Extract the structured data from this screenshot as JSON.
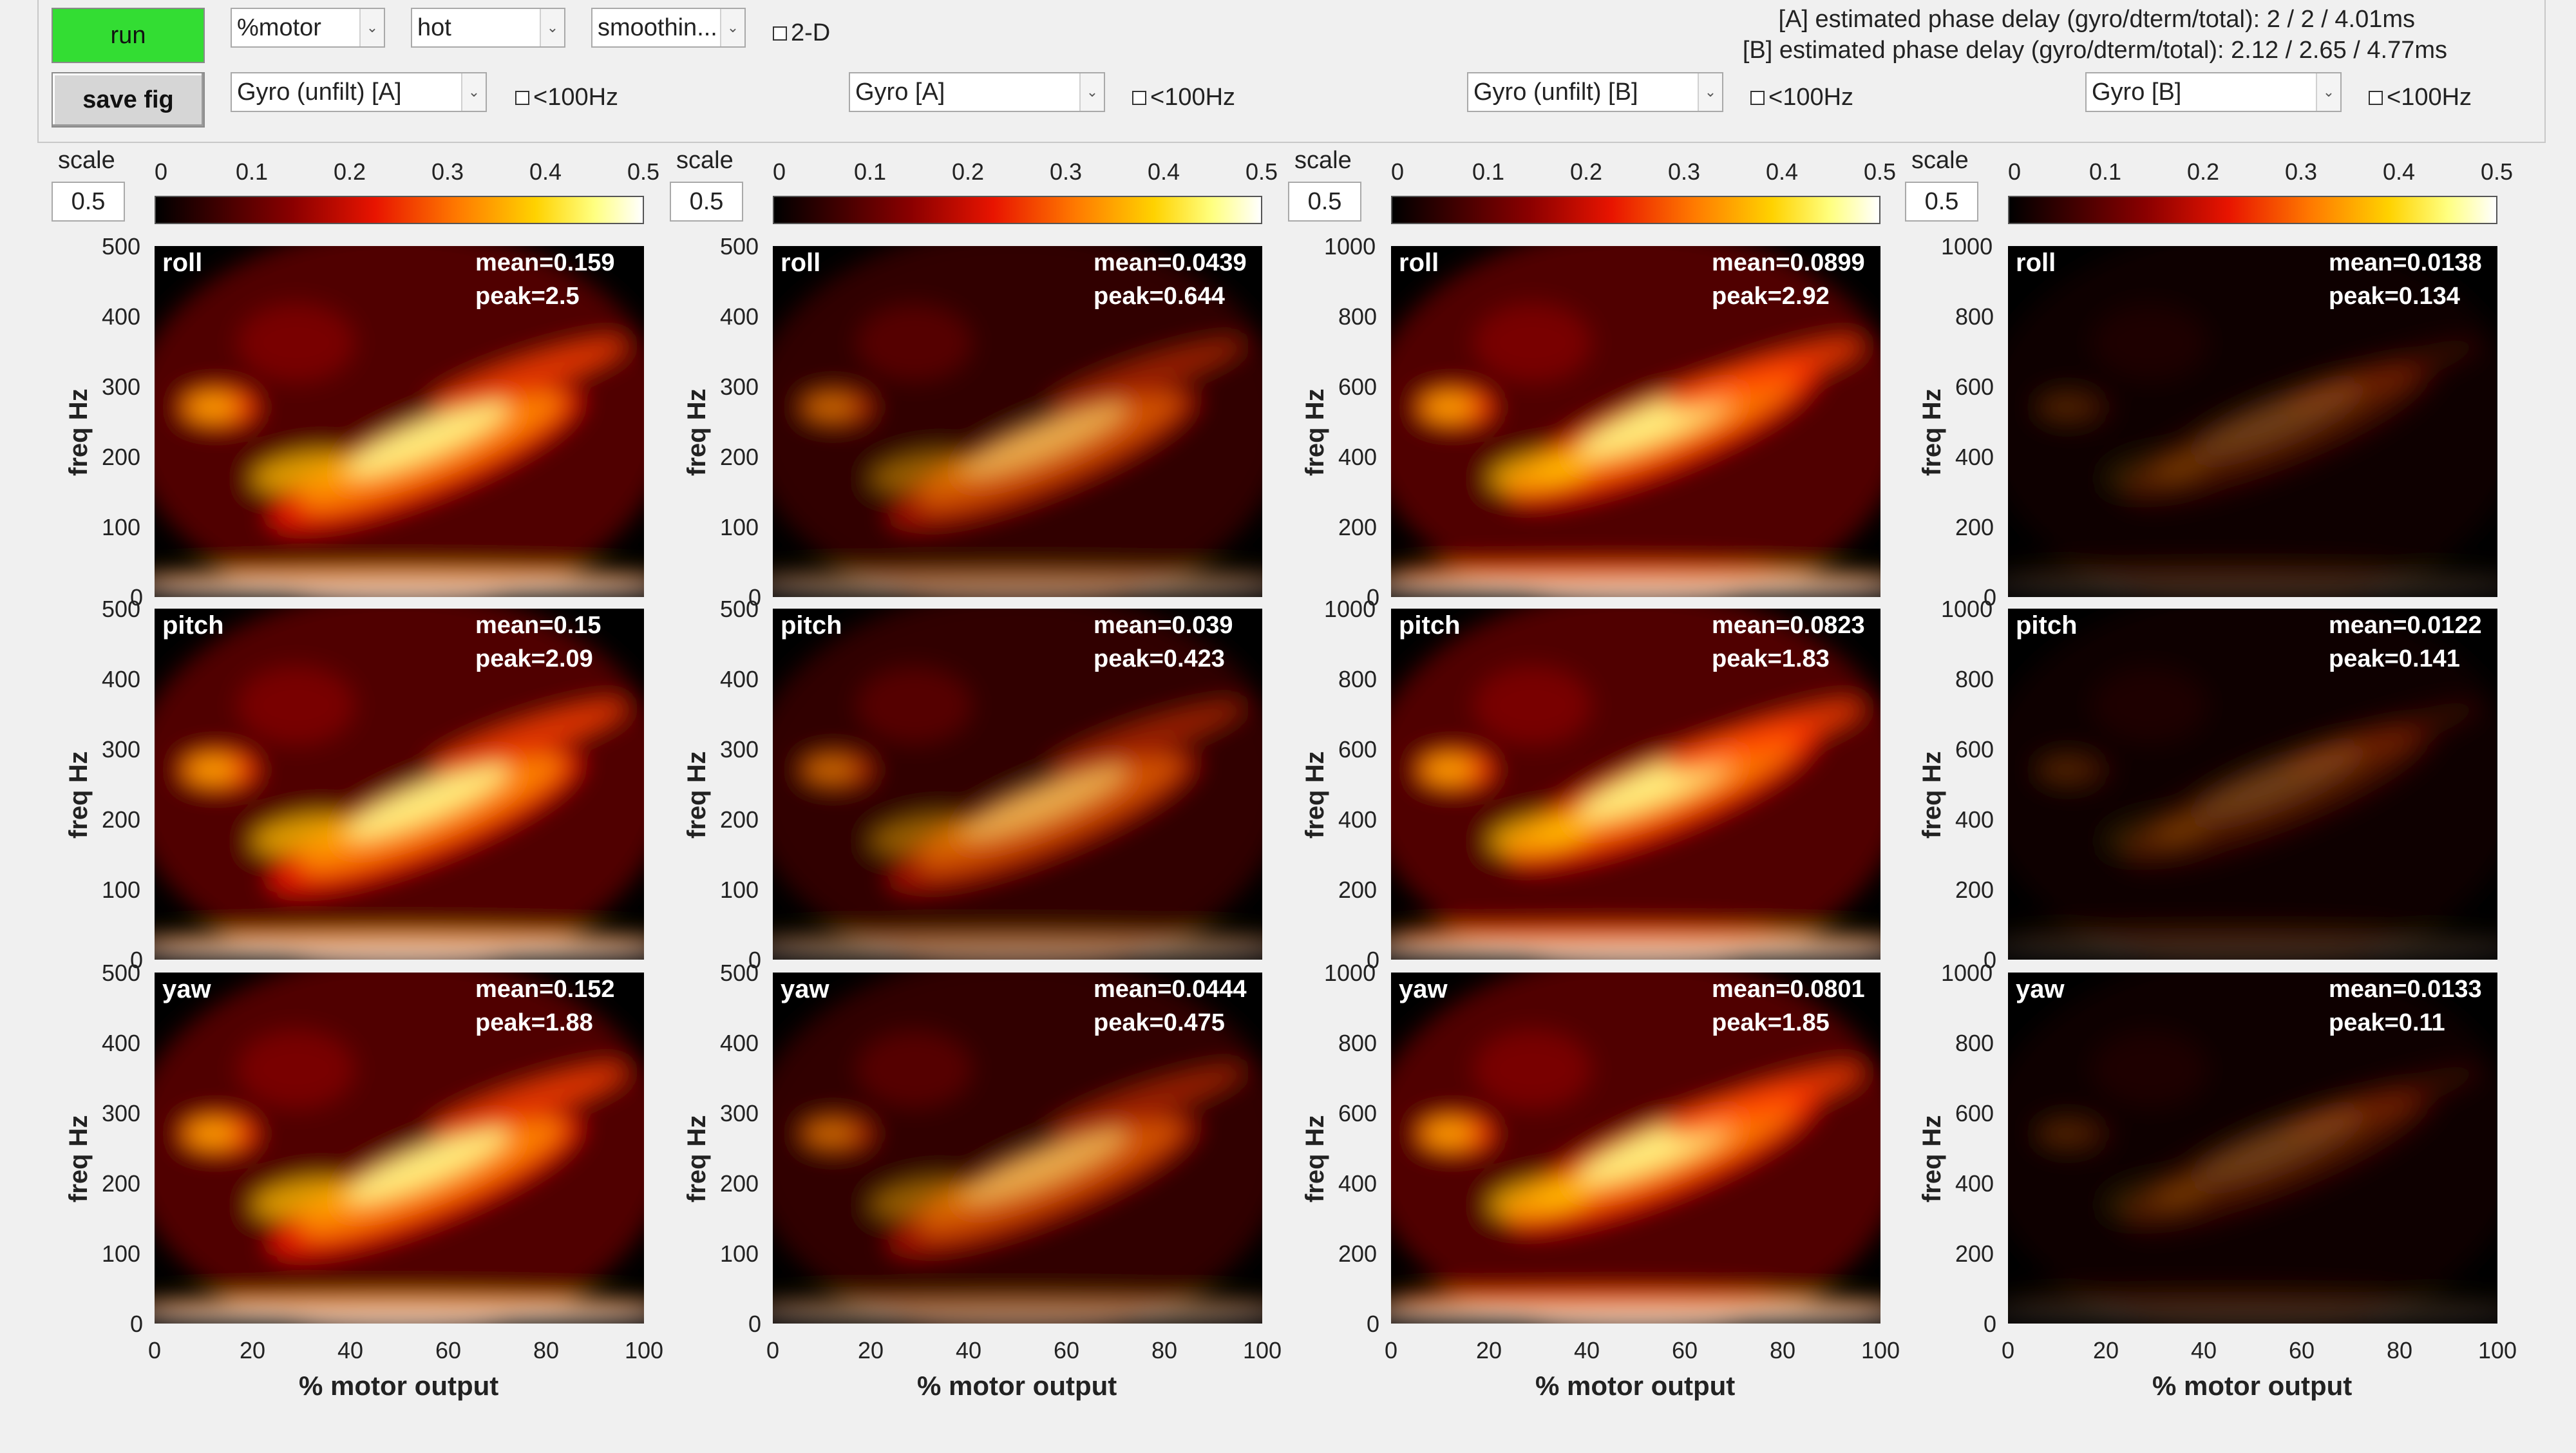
{
  "toolbar": {
    "run_label": "run",
    "save_label": "save fig",
    "xaxis_select": "%motor",
    "colormap_select": "hot",
    "smoothing_select": "smoothin...",
    "twod_label": "2-D",
    "phase_a": "[A] estimated phase delay (gyro/dterm/total): 2 / 2 / 4.01ms",
    "phase_b": "[B] estimated phase delay (gyro/dterm/total): 2.12 / 2.65 / 4.77ms"
  },
  "columns": [
    {
      "source": "Gyro (unfilt) [A]",
      "lt100_label": "<100Hz",
      "scale_label": "scale",
      "scale_value": "0.5",
      "yticks": [
        "500",
        "400",
        "300",
        "200",
        "100",
        "0"
      ],
      "rows": [
        {
          "axis": "roll",
          "mean": "mean=0.159",
          "peak": "peak=2.5"
        },
        {
          "axis": "pitch",
          "mean": "mean=0.15",
          "peak": "peak=2.09"
        },
        {
          "axis": "yaw",
          "mean": "mean=0.152",
          "peak": "peak=1.88"
        }
      ]
    },
    {
      "source": "Gyro [A]",
      "lt100_label": "<100Hz",
      "scale_label": "scale",
      "scale_value": "0.5",
      "yticks": [
        "500",
        "400",
        "300",
        "200",
        "100",
        "0"
      ],
      "rows": [
        {
          "axis": "roll",
          "mean": "mean=0.0439",
          "peak": "peak=0.644"
        },
        {
          "axis": "pitch",
          "mean": "mean=0.039",
          "peak": "peak=0.423"
        },
        {
          "axis": "yaw",
          "mean": "mean=0.0444",
          "peak": "peak=0.475"
        }
      ]
    },
    {
      "source": "Gyro (unfilt) [B]",
      "lt100_label": "<100Hz",
      "scale_label": "scale",
      "scale_value": "0.5",
      "yticks": [
        "1000",
        "800",
        "600",
        "400",
        "200",
        "0"
      ],
      "rows": [
        {
          "axis": "roll",
          "mean": "mean=0.0899",
          "peak": "peak=2.92"
        },
        {
          "axis": "pitch",
          "mean": "mean=0.0823",
          "peak": "peak=1.83"
        },
        {
          "axis": "yaw",
          "mean": "mean=0.0801",
          "peak": "peak=1.85"
        }
      ]
    },
    {
      "source": "Gyro [B]",
      "lt100_label": "<100Hz",
      "scale_label": "scale",
      "scale_value": "0.5",
      "yticks": [
        "1000",
        "800",
        "600",
        "400",
        "200",
        "0"
      ],
      "rows": [
        {
          "axis": "roll",
          "mean": "mean=0.0138",
          "peak": "peak=0.134"
        },
        {
          "axis": "pitch",
          "mean": "mean=0.0122",
          "peak": "peak=0.141"
        },
        {
          "axis": "yaw",
          "mean": "mean=0.0133",
          "peak": "peak=0.11"
        }
      ]
    }
  ],
  "colorbar_ticks": [
    "0",
    "0.1",
    "0.2",
    "0.3",
    "0.4",
    "0.5"
  ],
  "xticks": [
    "0",
    "20",
    "40",
    "60",
    "80",
    "100"
  ],
  "ylabel": "freq Hz",
  "xlabel": "% motor output",
  "colors": {
    "run_button": "#33dd33",
    "background": "#f0f0f0"
  }
}
